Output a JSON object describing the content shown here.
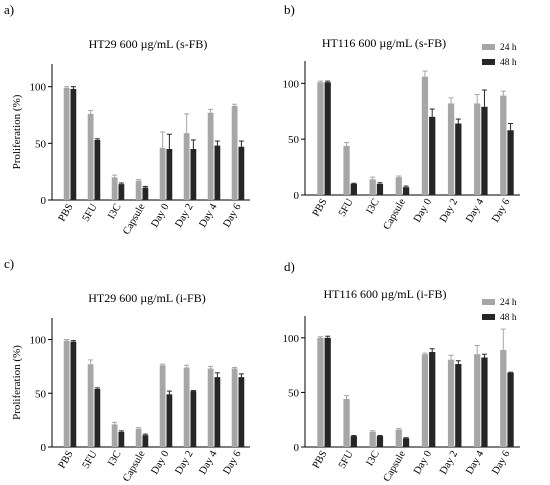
{
  "colors": {
    "h24": "#a6a6a6",
    "h48": "#262626",
    "axis": "#000000"
  },
  "chart_data": [
    {
      "panel": "a)",
      "type": "bar",
      "title": "HT29 600 µg/mL (s-FB)",
      "ylabel": "Proliferation (%)",
      "ylim": [
        0,
        120
      ],
      "yticks": [
        0,
        50,
        100
      ],
      "categories": [
        "PBS",
        "5FU",
        "I3C",
        "Capsule",
        "Day 0",
        "Day 2",
        "Day 4",
        "Day 6"
      ],
      "series": [
        {
          "values": [
            99,
            76,
            20,
            17,
            46,
            59,
            77,
            83
          ],
          "errors": [
            1,
            3,
            2,
            1,
            14,
            17,
            3,
            1.5
          ]
        },
        {
          "values": [
            98,
            53,
            14,
            11,
            45,
            45,
            48,
            47
          ],
          "errors": [
            2,
            1,
            1,
            1,
            13,
            8,
            4,
            5
          ]
        }
      ],
      "legend": null
    },
    {
      "panel": "b)",
      "type": "bar",
      "title": "HT116 600 µg/mL (s-FB)",
      "ylabel": "",
      "ylim": [
        0,
        120
      ],
      "yticks": [
        0,
        50,
        100
      ],
      "categories": [
        "PBS",
        "5FU",
        "I3C",
        "Capsule",
        "Day 0",
        "Day 2",
        "Day 4",
        "Day 6"
      ],
      "series": [
        {
          "name": "24 h",
          "values": [
            101,
            44,
            14,
            16,
            106,
            82,
            82,
            89
          ],
          "errors": [
            1,
            3,
            2,
            1,
            5,
            5,
            8,
            4
          ]
        },
        {
          "name": "48 h",
          "values": [
            101,
            10,
            10,
            7,
            70,
            64,
            79,
            58
          ],
          "errors": [
            1,
            0.5,
            1,
            1,
            7,
            4,
            15,
            6
          ]
        }
      ],
      "legend": "top-right"
    },
    {
      "panel": "c)",
      "type": "bar",
      "title": "HT29 600 µg/mL (i-FB)",
      "ylabel": "Proliferation (%)",
      "ylim": [
        0,
        120
      ],
      "yticks": [
        0,
        50,
        100
      ],
      "categories": [
        "PBS",
        "5FU",
        "I3C",
        "Capsule",
        "Day 0",
        "Day 2",
        "Day 4",
        "Day 6"
      ],
      "series": [
        {
          "values": [
            99,
            77,
            21,
            17,
            76,
            74,
            73,
            73
          ],
          "errors": [
            1,
            4,
            2,
            1,
            1,
            2,
            2,
            1
          ]
        },
        {
          "values": [
            98,
            54,
            14,
            11,
            49,
            52,
            65,
            65
          ],
          "errors": [
            1,
            1,
            1,
            1,
            3,
            0.5,
            4,
            3
          ]
        }
      ],
      "legend": null
    },
    {
      "panel": "d)",
      "type": "bar",
      "title": "HT116 600 µg/mL (i-FB)",
      "ylabel": "",
      "ylim": [
        0,
        120
      ],
      "yticks": [
        0,
        50,
        100
      ],
      "categories": [
        "PBS",
        "5FU",
        "I3C",
        "Capsule",
        "Day 0",
        "Day 2",
        "Day 4",
        "Day 6"
      ],
      "series": [
        {
          "name": "24 h",
          "values": [
            100,
            44,
            14,
            16,
            85,
            80,
            85,
            89
          ],
          "errors": [
            1,
            3,
            1,
            1,
            1,
            4,
            8,
            19
          ]
        },
        {
          "name": "48 h",
          "values": [
            100,
            10,
            10,
            8,
            87,
            76,
            82,
            68
          ],
          "errors": [
            1.5,
            0.5,
            0.5,
            0.5,
            3,
            3,
            3,
            0.5
          ]
        }
      ],
      "legend": "top-right"
    }
  ]
}
